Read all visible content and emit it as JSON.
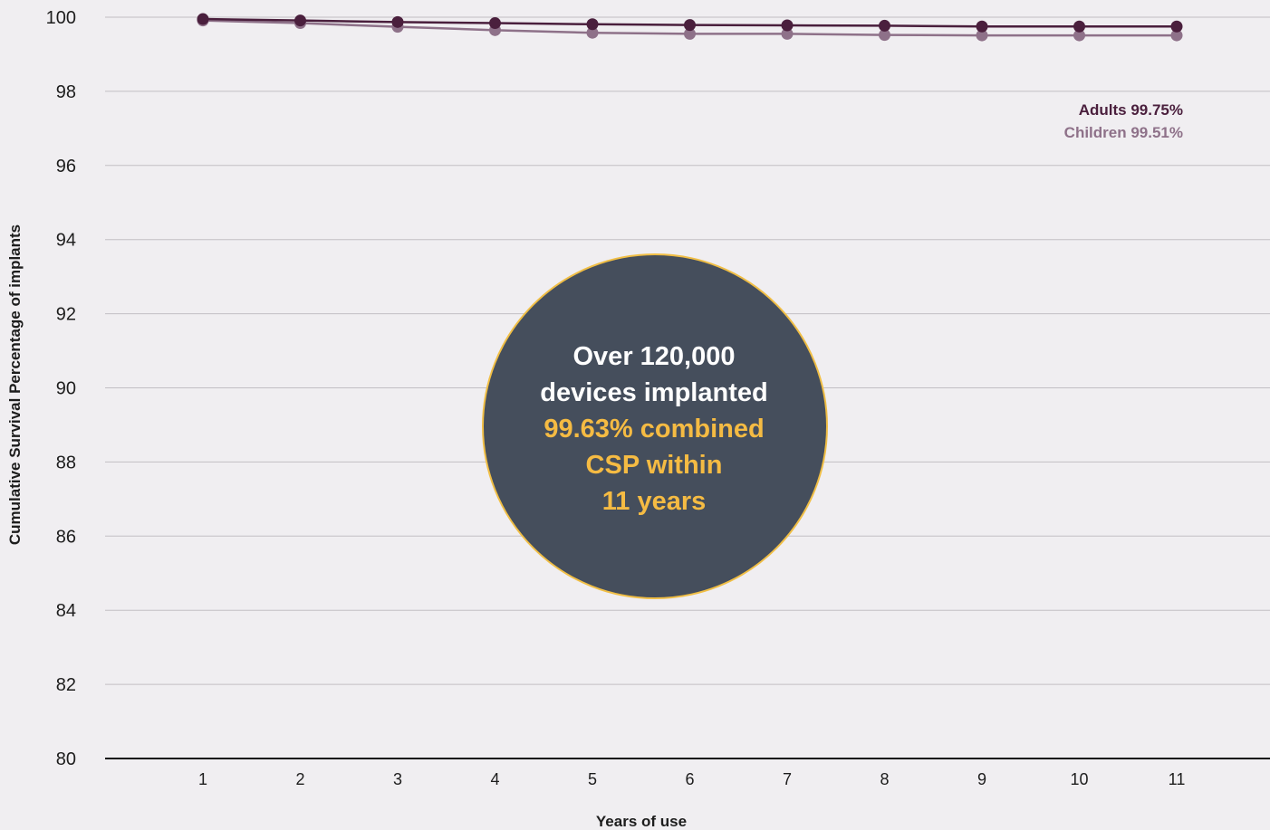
{
  "chart_data": {
    "type": "line",
    "title": "",
    "xlabel": "Years of use",
    "ylabel": "Cumulative Survival Percentage of implants",
    "x": [
      1,
      2,
      3,
      4,
      5,
      6,
      7,
      8,
      9,
      10,
      11
    ],
    "x_tick_labels": [
      "1",
      "2",
      "3",
      "4",
      "5",
      "6",
      "7",
      "8",
      "9",
      "10",
      "11"
    ],
    "ylim": [
      80,
      100
    ],
    "y_ticks": [
      80,
      82,
      84,
      86,
      88,
      90,
      92,
      94,
      96,
      98,
      100
    ],
    "y_tick_labels": [
      "80",
      "82",
      "84",
      "86",
      "88",
      "90",
      "92",
      "94",
      "96",
      "98",
      "100"
    ],
    "grid": true,
    "legend_placement": "top-right",
    "series": [
      {
        "name": "Adults",
        "end_label": "Adults 99.75%",
        "color": "#4a1f3d",
        "values": [
          99.95,
          99.91,
          99.87,
          99.84,
          99.81,
          99.79,
          99.78,
          99.77,
          99.75,
          99.75,
          99.75
        ]
      },
      {
        "name": "Children",
        "end_label": "Children 99.51%",
        "color": "#8e7189",
        "values": [
          99.91,
          99.84,
          99.74,
          99.65,
          99.58,
          99.55,
          99.55,
          99.52,
          99.51,
          99.51,
          99.51
        ]
      }
    ],
    "callout": {
      "lines": [
        "Over 120,000",
        "devices implanted",
        "99.63% combined",
        "CSP within",
        "11 years"
      ],
      "white_line_count": 2,
      "fill_color": "#454e5c",
      "border_color": "#f0be45",
      "text_color": "#ffffff",
      "highlight_color": "#f5bb43"
    }
  }
}
